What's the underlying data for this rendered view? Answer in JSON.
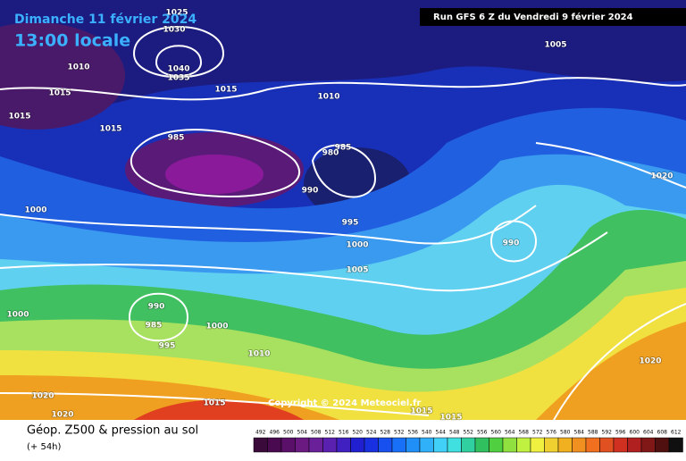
{
  "header": {
    "date": "Dimanche 11 février 2024",
    "time": "13:00 locale",
    "run": "Run GFS 6 Z du Vendredi 9 février 2024"
  },
  "copyright": "Copyright © 2024 Meteociel.fr",
  "isobar_labels": [
    "1025",
    "1030",
    "1040",
    "1035",
    "1010",
    "1015",
    "1015",
    "1015",
    "1010",
    "1015",
    "985",
    "985",
    "980",
    "990",
    "995",
    "1000",
    "1005",
    "990",
    "1000",
    "1000",
    "990",
    "985",
    "995",
    "1000",
    "1010",
    "1015",
    "1020",
    "1020",
    "1015",
    "1015",
    "1020",
    "1005",
    "1020"
  ],
  "footer": {
    "title": "Géop. Z500 & pression au sol",
    "lead": "(+ 54h)"
  },
  "legend": {
    "values": [
      492,
      496,
      500,
      504,
      508,
      512,
      516,
      520,
      524,
      528,
      532,
      536,
      540,
      544,
      548,
      552,
      556,
      560,
      564,
      568,
      572,
      576,
      580,
      584,
      588,
      592,
      596,
      600,
      604,
      608,
      612
    ]
  }
}
